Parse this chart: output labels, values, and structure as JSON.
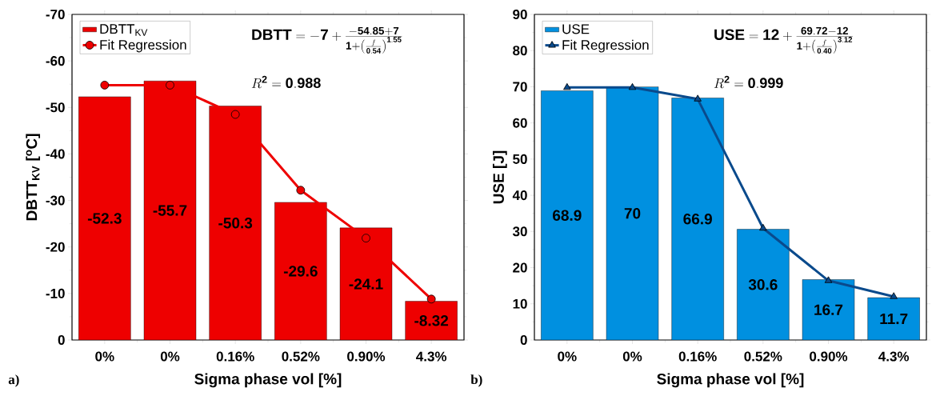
{
  "chart_data": [
    {
      "type": "bar",
      "categories": [
        "0%",
        "0%",
        "0.16%",
        "0.52%",
        "0.90%",
        "4.3%"
      ],
      "xlabel": "Sigma phase vol [%]",
      "ylabel": "DBTT$_{KV}$ [$^{o}$C]",
      "ylim": [
        0,
        -70
      ],
      "yticks": [
        0,
        -10,
        -20,
        -30,
        -40,
        -50,
        -60,
        -70
      ],
      "legend": "top left",
      "grid": false,
      "series": [
        {
          "name": "DBTT$_{KV}$",
          "color": "#ee0000",
          "values": [
            -52.3,
            -55.7,
            -50.3,
            -29.6,
            -24.1,
            -8.32
          ],
          "value_labels": [
            "-52.3",
            "-55.7",
            "-50.3",
            "-29.6",
            "-24.1",
            "-8.32"
          ]
        },
        {
          "type": "line",
          "name": "Fit Regression",
          "color": "#ee0000",
          "marker": "circle",
          "values": [
            -54.8,
            -54.8,
            -48.5,
            -32.2,
            -21.9,
            -8.8
          ]
        }
      ],
      "annotations": [
        "\\mathbf{DBTT} = \\mathbf{-7} + \\frac{\\mathbf{-54.85 + 7}}{\\mathbf{1} + \\left(\\frac{f}{\\mathbf{0.54}}\\right)^{\\mathbf{1.55}}}",
        "R^{\\mathbf{2}} = \\mathbf{0.988}",
        "a)"
      ]
    },
    {
      "type": "bar",
      "categories": [
        "0%",
        "0%",
        "0.16%",
        "0.52%",
        "0.90%",
        "4.3%"
      ],
      "xlabel": "Sigma phase vol [%]",
      "ylabel": "USE [J]",
      "ylim": [
        0,
        90
      ],
      "yticks": [
        0,
        10,
        20,
        30,
        40,
        50,
        60,
        70,
        80,
        90
      ],
      "legend": "top left",
      "grid": false,
      "series": [
        {
          "name": "USE",
          "color": "#0090e0",
          "values": [
            68.9,
            70,
            66.9,
            30.6,
            16.7,
            11.7
          ],
          "value_labels": [
            "68.9",
            "70",
            "66.9",
            "30.6",
            "16.7",
            "11.7"
          ]
        },
        {
          "type": "line",
          "name": "Fit Regression",
          "color": "#0a4a8c",
          "marker": "triangle",
          "values": [
            69.8,
            69.8,
            66.6,
            30.9,
            16.4,
            12.0
          ]
        }
      ],
      "annotations": [
        "\\mathbf{USE} = \\mathbf{12} + \\frac{\\mathbf{69.72 - 12}}{\\mathbf{1} + \\left(\\frac{f}{\\mathbf{0.40}}\\right)^{\\mathbf{3.12}}}",
        "R^{\\mathbf{2}} = \\mathbf{0.999}",
        "b)"
      ]
    }
  ]
}
